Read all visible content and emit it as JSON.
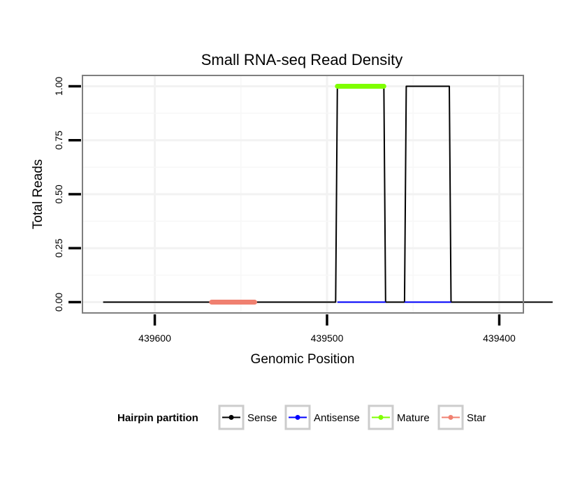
{
  "chart_data": {
    "type": "line",
    "title": "Small RNA-seq Read Density",
    "xlabel": "Genomic Position",
    "ylabel": "Total Reads",
    "xlim": [
      439642,
      439386
    ],
    "ylim": [
      -0.05,
      1.05
    ],
    "x_reversed": true,
    "x_ticks": [
      439600,
      439500,
      439400
    ],
    "x_tick_labels": [
      "439600",
      "439500",
      "439400"
    ],
    "y_ticks": [
      0,
      0.25,
      0.5,
      0.75,
      1.0
    ],
    "y_tick_labels": [
      "0.00",
      "0.25",
      "0.50",
      "0.75",
      "1.00"
    ],
    "grid": true,
    "series": [
      {
        "name": "Sense",
        "color": "#000000",
        "x": [
          439630,
          439495,
          439494,
          439467,
          439466,
          439455,
          439454,
          439429,
          439428,
          439369
        ],
        "y": [
          0,
          0,
          1,
          1,
          0,
          0,
          1,
          1,
          0,
          0
        ]
      },
      {
        "name": "Antisense",
        "color": "#0000ff",
        "x": [
          439494,
          439466,
          439455,
          439428
        ],
        "y": [
          0,
          0,
          0,
          0
        ],
        "segments": [
          [
            0,
            1
          ],
          [
            2,
            3
          ]
        ]
      },
      {
        "name": "Mature",
        "color": "#7fff00",
        "x": [
          439494,
          439467
        ],
        "y": [
          1,
          1
        ]
      },
      {
        "name": "Star",
        "color": "#f08070",
        "x": [
          439567,
          439542
        ],
        "y": [
          0,
          0
        ]
      }
    ],
    "legend": {
      "title": "Hairpin partition",
      "position": "bottom",
      "entries": [
        "Sense",
        "Antisense",
        "Mature",
        "Star"
      ]
    }
  }
}
